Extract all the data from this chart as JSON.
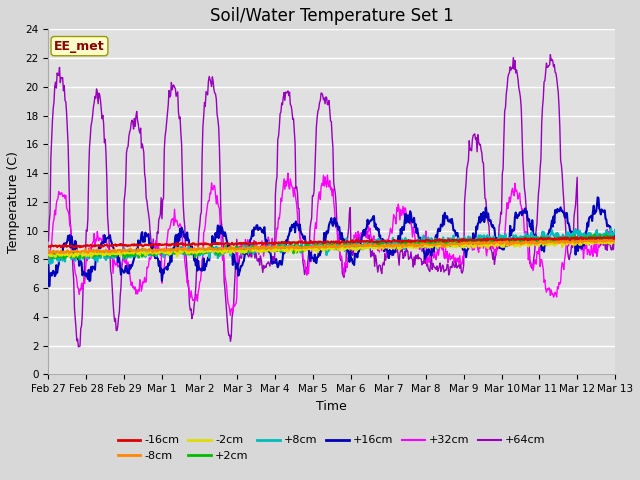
{
  "title": "Soil/Water Temperature Set 1",
  "xlabel": "Time",
  "ylabel": "Temperature (C)",
  "annotation": "EE_met",
  "ylim": [
    0,
    24
  ],
  "bg_color": "#d8d8d8",
  "plot_bg_color": "#e0e0e0",
  "grid_color": "#ffffff",
  "series": {
    "-16cm": {
      "color": "#dd0000",
      "lw": 1.5,
      "zorder": 5
    },
    "-8cm": {
      "color": "#ff8800",
      "lw": 1.5,
      "zorder": 5
    },
    "-2cm": {
      "color": "#dddd00",
      "lw": 1.5,
      "zorder": 5
    },
    "+2cm": {
      "color": "#00bb00",
      "lw": 1.5,
      "zorder": 5
    },
    "+8cm": {
      "color": "#00bbbb",
      "lw": 1.5,
      "zorder": 5
    },
    "+16cm": {
      "color": "#0000bb",
      "lw": 1.5,
      "zorder": 5
    },
    "+32cm": {
      "color": "#ff00ff",
      "lw": 1.0,
      "zorder": 4
    },
    "+64cm": {
      "color": "#9900bb",
      "lw": 1.0,
      "zorder": 4
    }
  },
  "xtick_labels": [
    "Feb 27",
    "Feb 28",
    "Feb 29",
    "Mar 1",
    "Mar 2",
    "Mar 3",
    "Mar 4",
    "Mar 5",
    "Mar 6",
    "Mar 7",
    "Mar 8",
    "Mar 9",
    "Mar 10",
    "Mar 11",
    "Mar 12",
    "Mar 13"
  ],
  "xtick_positions": [
    0,
    1,
    2,
    3,
    4,
    5,
    6,
    7,
    8,
    9,
    10,
    11,
    12,
    13,
    14,
    15
  ],
  "title_fontsize": 12,
  "tick_fontsize": 7.5,
  "label_fontsize": 9,
  "legend_fontsize": 8
}
